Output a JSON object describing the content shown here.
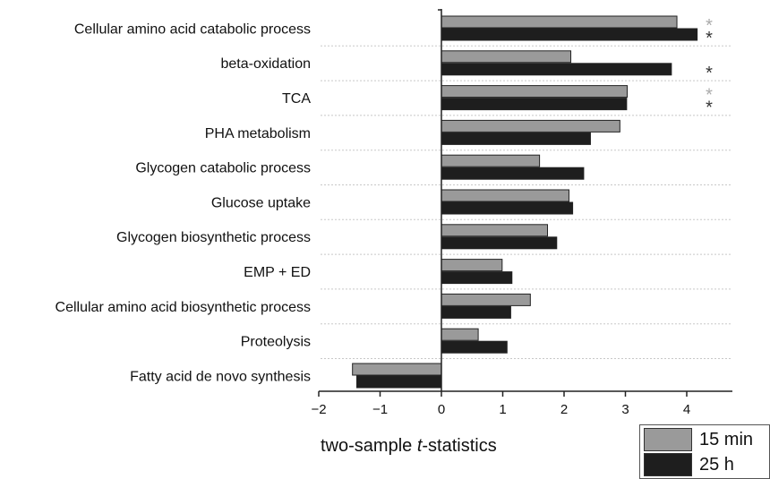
{
  "chart_data": {
    "type": "bar",
    "orientation": "horizontal",
    "categories": [
      "Cellular amino acid catabolic process",
      "beta-oxidation",
      "TCA",
      "PHA metabolism",
      "Glycogen catabolic process",
      "Glucose uptake",
      "Glycogen biosynthetic process",
      "EMP + ED",
      "Cellular amino acid biosynthetic process",
      "Proteolysis",
      "Fatty acid de novo synthesis"
    ],
    "series": [
      {
        "name": "15 min",
        "color": "#9a9a9a",
        "values": [
          3.84,
          2.11,
          3.03,
          2.91,
          1.6,
          2.08,
          1.73,
          0.99,
          1.45,
          0.6,
          -1.45
        ],
        "significant": [
          true,
          false,
          true,
          false,
          false,
          false,
          false,
          false,
          false,
          false,
          false
        ]
      },
      {
        "name": "25 h",
        "color": "#1e1e1e",
        "values": [
          4.17,
          3.75,
          3.02,
          2.43,
          2.32,
          2.14,
          1.88,
          1.15,
          1.13,
          1.07,
          -1.38
        ],
        "significant": [
          true,
          true,
          true,
          false,
          false,
          false,
          false,
          false,
          false,
          false,
          false
        ]
      }
    ],
    "significance_marker": "*",
    "significance_colors": [
      "#aaaaaa",
      "#333333"
    ],
    "xlabel_prefix": "two-sample ",
    "xlabel_italic": "t",
    "xlabel_suffix": "-statistics",
    "xlim": [
      -2,
      4.8
    ],
    "xticks": [
      -2,
      -1,
      0,
      1,
      2,
      3,
      4
    ],
    "xtick_labels": [
      "−2",
      "−1",
      "0",
      "1",
      "2",
      "3",
      "4"
    ],
    "grid": "dotted horizontal separators",
    "legend_position": "bottom-right"
  }
}
